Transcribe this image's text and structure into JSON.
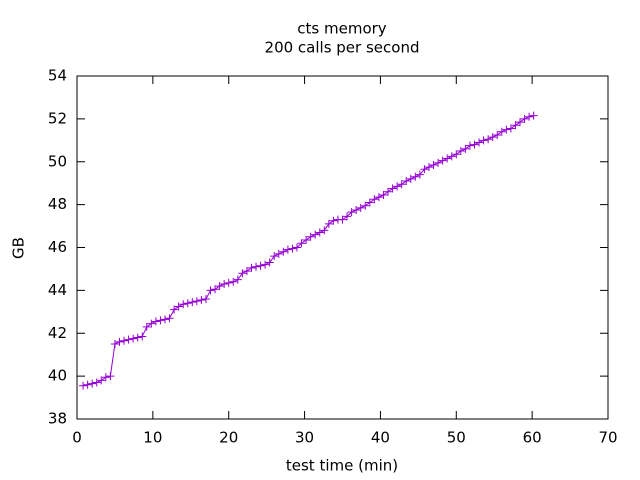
{
  "chart_data": {
    "type": "line",
    "title": "cts memory",
    "subtitle": "200 calls per second",
    "xlabel": "test time (min)",
    "ylabel": "GB",
    "xlim": [
      0,
      70
    ],
    "xticks": [
      0,
      10,
      20,
      30,
      40,
      50,
      60,
      70
    ],
    "ylim": [
      38,
      54
    ],
    "yticks": [
      38,
      40,
      42,
      44,
      46,
      48,
      50,
      52,
      54
    ],
    "grid": false,
    "markers": "+",
    "x": [
      0.8,
      1.4,
      2.0,
      2.6,
      3.2,
      3.8,
      4.4,
      5.0,
      5.6,
      6.2,
      6.8,
      7.4,
      8.0,
      8.6,
      9.2,
      9.8,
      10.4,
      11.0,
      11.6,
      12.2,
      12.8,
      13.4,
      14.0,
      14.6,
      15.2,
      15.8,
      16.4,
      17.0,
      17.6,
      18.2,
      18.8,
      19.4,
      20.0,
      20.6,
      21.2,
      21.8,
      22.4,
      23.0,
      23.6,
      24.2,
      24.8,
      25.4,
      26.0,
      26.6,
      27.2,
      27.8,
      28.4,
      29.0,
      29.6,
      30.2,
      30.8,
      31.4,
      32.0,
      32.6,
      33.2,
      33.8,
      34.4,
      35.0,
      35.6,
      36.2,
      36.8,
      37.4,
      38.0,
      38.6,
      39.2,
      39.8,
      40.4,
      41.0,
      41.6,
      42.2,
      42.8,
      43.4,
      44.0,
      44.6,
      45.2,
      45.8,
      46.4,
      47.0,
      47.6,
      48.2,
      48.8,
      49.4,
      50.0,
      50.6,
      51.2,
      51.8,
      52.4,
      53.0,
      53.6,
      54.2,
      54.8,
      55.4,
      56.0,
      56.6,
      57.2,
      57.8,
      58.4,
      59.0,
      59.6,
      60.2
    ],
    "series": [
      {
        "color": "#9400d3",
        "values": [
          39.55,
          39.6,
          39.65,
          39.7,
          39.8,
          39.95,
          40.0,
          41.5,
          41.6,
          41.65,
          41.7,
          41.75,
          41.8,
          41.85,
          42.3,
          42.45,
          42.55,
          42.6,
          42.65,
          42.7,
          43.1,
          43.25,
          43.35,
          43.4,
          43.45,
          43.5,
          43.55,
          43.6,
          44.0,
          44.05,
          44.2,
          44.3,
          44.35,
          44.4,
          44.5,
          44.8,
          44.9,
          45.05,
          45.1,
          45.15,
          45.2,
          45.3,
          45.6,
          45.7,
          45.8,
          45.9,
          45.95,
          46.0,
          46.2,
          46.35,
          46.5,
          46.6,
          46.7,
          46.8,
          47.1,
          47.25,
          47.3,
          47.3,
          47.45,
          47.65,
          47.75,
          47.85,
          47.95,
          48.1,
          48.25,
          48.35,
          48.45,
          48.6,
          48.75,
          48.85,
          48.95,
          49.1,
          49.2,
          49.3,
          49.4,
          49.65,
          49.75,
          49.85,
          49.95,
          50.05,
          50.15,
          50.25,
          50.35,
          50.5,
          50.6,
          50.75,
          50.8,
          50.9,
          51.0,
          51.05,
          51.15,
          51.25,
          51.4,
          51.5,
          51.55,
          51.7,
          51.85,
          52.0,
          52.1,
          52.15
        ]
      }
    ]
  }
}
